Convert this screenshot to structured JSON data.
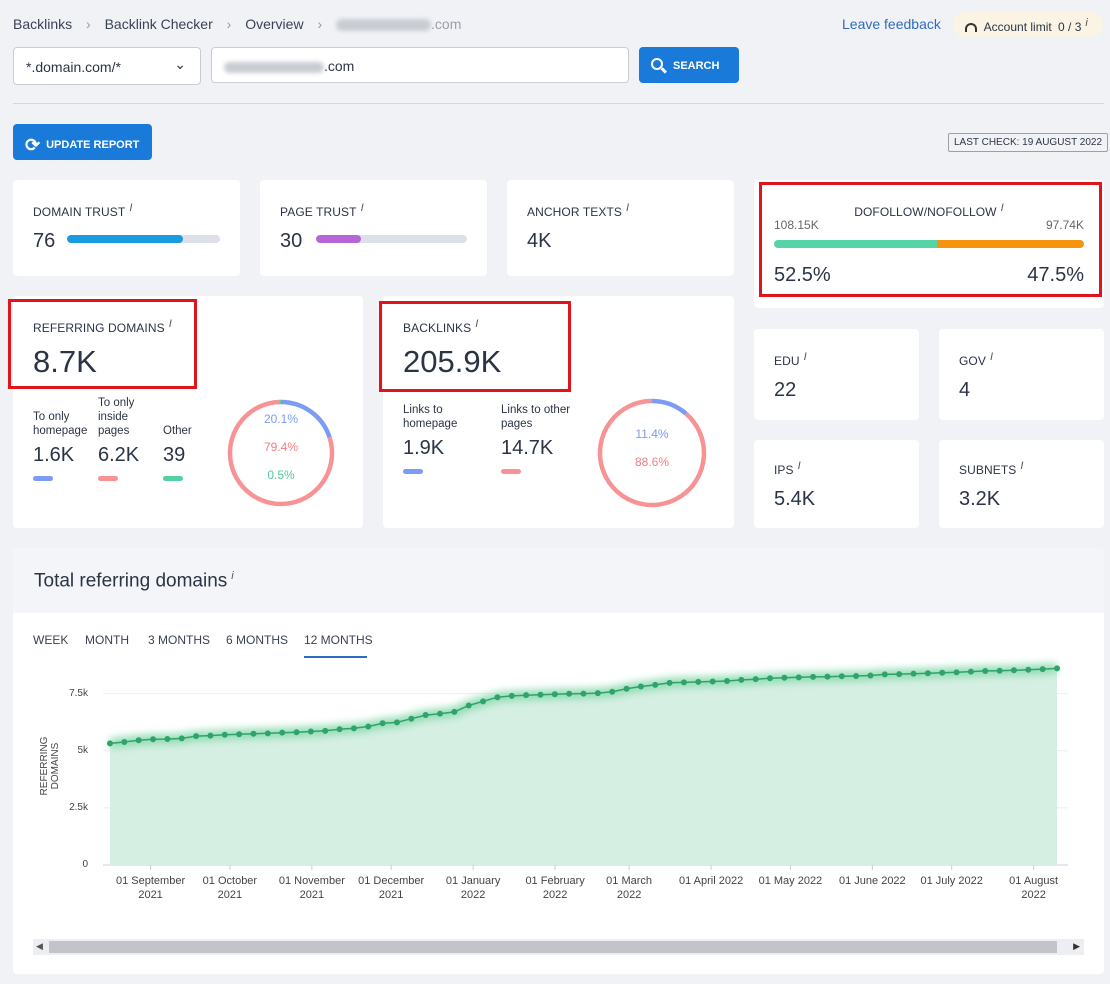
{
  "breadcrumb": {
    "items": [
      "Backlinks",
      "Backlink Checker",
      "Overview"
    ],
    "current": ".com"
  },
  "header": {
    "feedback_label": "Leave feedback",
    "account_limit_label": "Account limit",
    "account_limit_value": "0 / 3"
  },
  "search": {
    "scope_selected": "*.domain.com/*",
    "query_value": ".com",
    "search_label": "SEARCH"
  },
  "toolbar": {
    "update_label": "UPDATE REPORT",
    "last_check": "LAST CHECK: 19 AUGUST 2022"
  },
  "colors": {
    "accent": "#1a7ad9",
    "domain_trust_bar": "#1a9be0",
    "page_trust_bar": "#b566d6",
    "dofollow": "#57d3a8",
    "nofollow": "#f4940f",
    "homepage": "#7b9cf2",
    "inside_pages": "#f79395",
    "other": "#53d2a0",
    "highlight": "#e0141b"
  },
  "metrics": {
    "domain_trust": {
      "label": "DOMAIN TRUST",
      "value": "76",
      "fill_pct": 76
    },
    "page_trust": {
      "label": "PAGE TRUST",
      "value": "30",
      "fill_pct": 30
    },
    "anchor_texts": {
      "label": "ANCHOR TEXTS",
      "value": "4K"
    },
    "dofollow": {
      "label": "DOFOLLOW/NOFOLLOW",
      "left_count": "108.15K",
      "right_count": "97.74K",
      "left_pct": "52.5%",
      "right_pct": "47.5%",
      "left_fraction": 0.525
    },
    "edu": {
      "label": "EDU",
      "value": "22"
    },
    "gov": {
      "label": "GOV",
      "value": "4"
    },
    "ips": {
      "label": "IPS",
      "value": "5.4K"
    },
    "subnets": {
      "label": "SUBNETS",
      "value": "3.2K"
    }
  },
  "referring_domains": {
    "label": "REFERRING DOMAINS",
    "value": "8.7K",
    "breakdown": [
      {
        "label_lines": [
          "To only",
          "homepage"
        ],
        "value": "1.6K"
      },
      {
        "label_lines": [
          "To only",
          "inside",
          "pages"
        ],
        "value": "6.2K"
      },
      {
        "label_lines": [
          "Other"
        ],
        "value": "39"
      }
    ],
    "donut": [
      {
        "text": "20.1%",
        "fraction": 0.201
      },
      {
        "text": "79.4%",
        "fraction": 0.794
      },
      {
        "text": "0.5%",
        "fraction": 0.005
      }
    ]
  },
  "backlinks": {
    "label": "BACKLINKS",
    "value": "205.9K",
    "breakdown": [
      {
        "label_lines": [
          "Links to",
          "homepage"
        ],
        "value": "1.9K"
      },
      {
        "label_lines": [
          "Links to other",
          "pages"
        ],
        "value": "14.7K"
      }
    ],
    "donut": [
      {
        "text": "11.4%",
        "fraction": 0.114
      },
      {
        "text": "88.6%",
        "fraction": 0.886
      }
    ]
  },
  "trend": {
    "title": "Total referring domains",
    "tabs": [
      "WEEK",
      "MONTH",
      "3 MONTHS",
      "6 MONTHS",
      "12 MONTHS"
    ],
    "active_tab": "12 MONTHS"
  },
  "chart_data": {
    "type": "area",
    "title": "Total referring domains",
    "ylabel": "REFERRING DOMAINS",
    "xlabel": "",
    "ylim": [
      0,
      8750
    ],
    "yticks": [
      0,
      2500,
      5000,
      7500
    ],
    "ytick_labels": [
      "0",
      "2.5k",
      "5k",
      "7.5k"
    ],
    "x_start": "2021-08-14",
    "x_end": "2022-08-14",
    "xtick_labels": [
      [
        "01 September",
        "2021"
      ],
      [
        "01 October",
        "2021"
      ],
      [
        "01 November",
        "2021"
      ],
      [
        "01 December",
        "2021"
      ],
      [
        "01 January",
        "2022"
      ],
      [
        "01 February",
        "2022"
      ],
      [
        "01 March",
        "2022"
      ],
      [
        "01 April 2022"
      ],
      [
        "01 May 2022"
      ],
      [
        "01 June 2022"
      ],
      [
        "01 July 2022"
      ],
      [
        "01 August",
        "2022"
      ]
    ],
    "series": [
      {
        "name": "Referring domains",
        "values": [
          5320,
          5380,
          5460,
          5500,
          5510,
          5540,
          5640,
          5660,
          5700,
          5720,
          5740,
          5760,
          5790,
          5810,
          5840,
          5870,
          5940,
          5980,
          6060,
          6200,
          6240,
          6400,
          6560,
          6620,
          6700,
          6980,
          7160,
          7340,
          7400,
          7430,
          7450,
          7470,
          7490,
          7500,
          7520,
          7580,
          7710,
          7810,
          7880,
          7970,
          7990,
          8010,
          8030,
          8050,
          8100,
          8130,
          8170,
          8190,
          8210,
          8230,
          8240,
          8260,
          8270,
          8290,
          8340,
          8350,
          8370,
          8390,
          8410,
          8430,
          8460,
          8490,
          8500,
          8520,
          8540,
          8570,
          8600
        ]
      }
    ]
  }
}
